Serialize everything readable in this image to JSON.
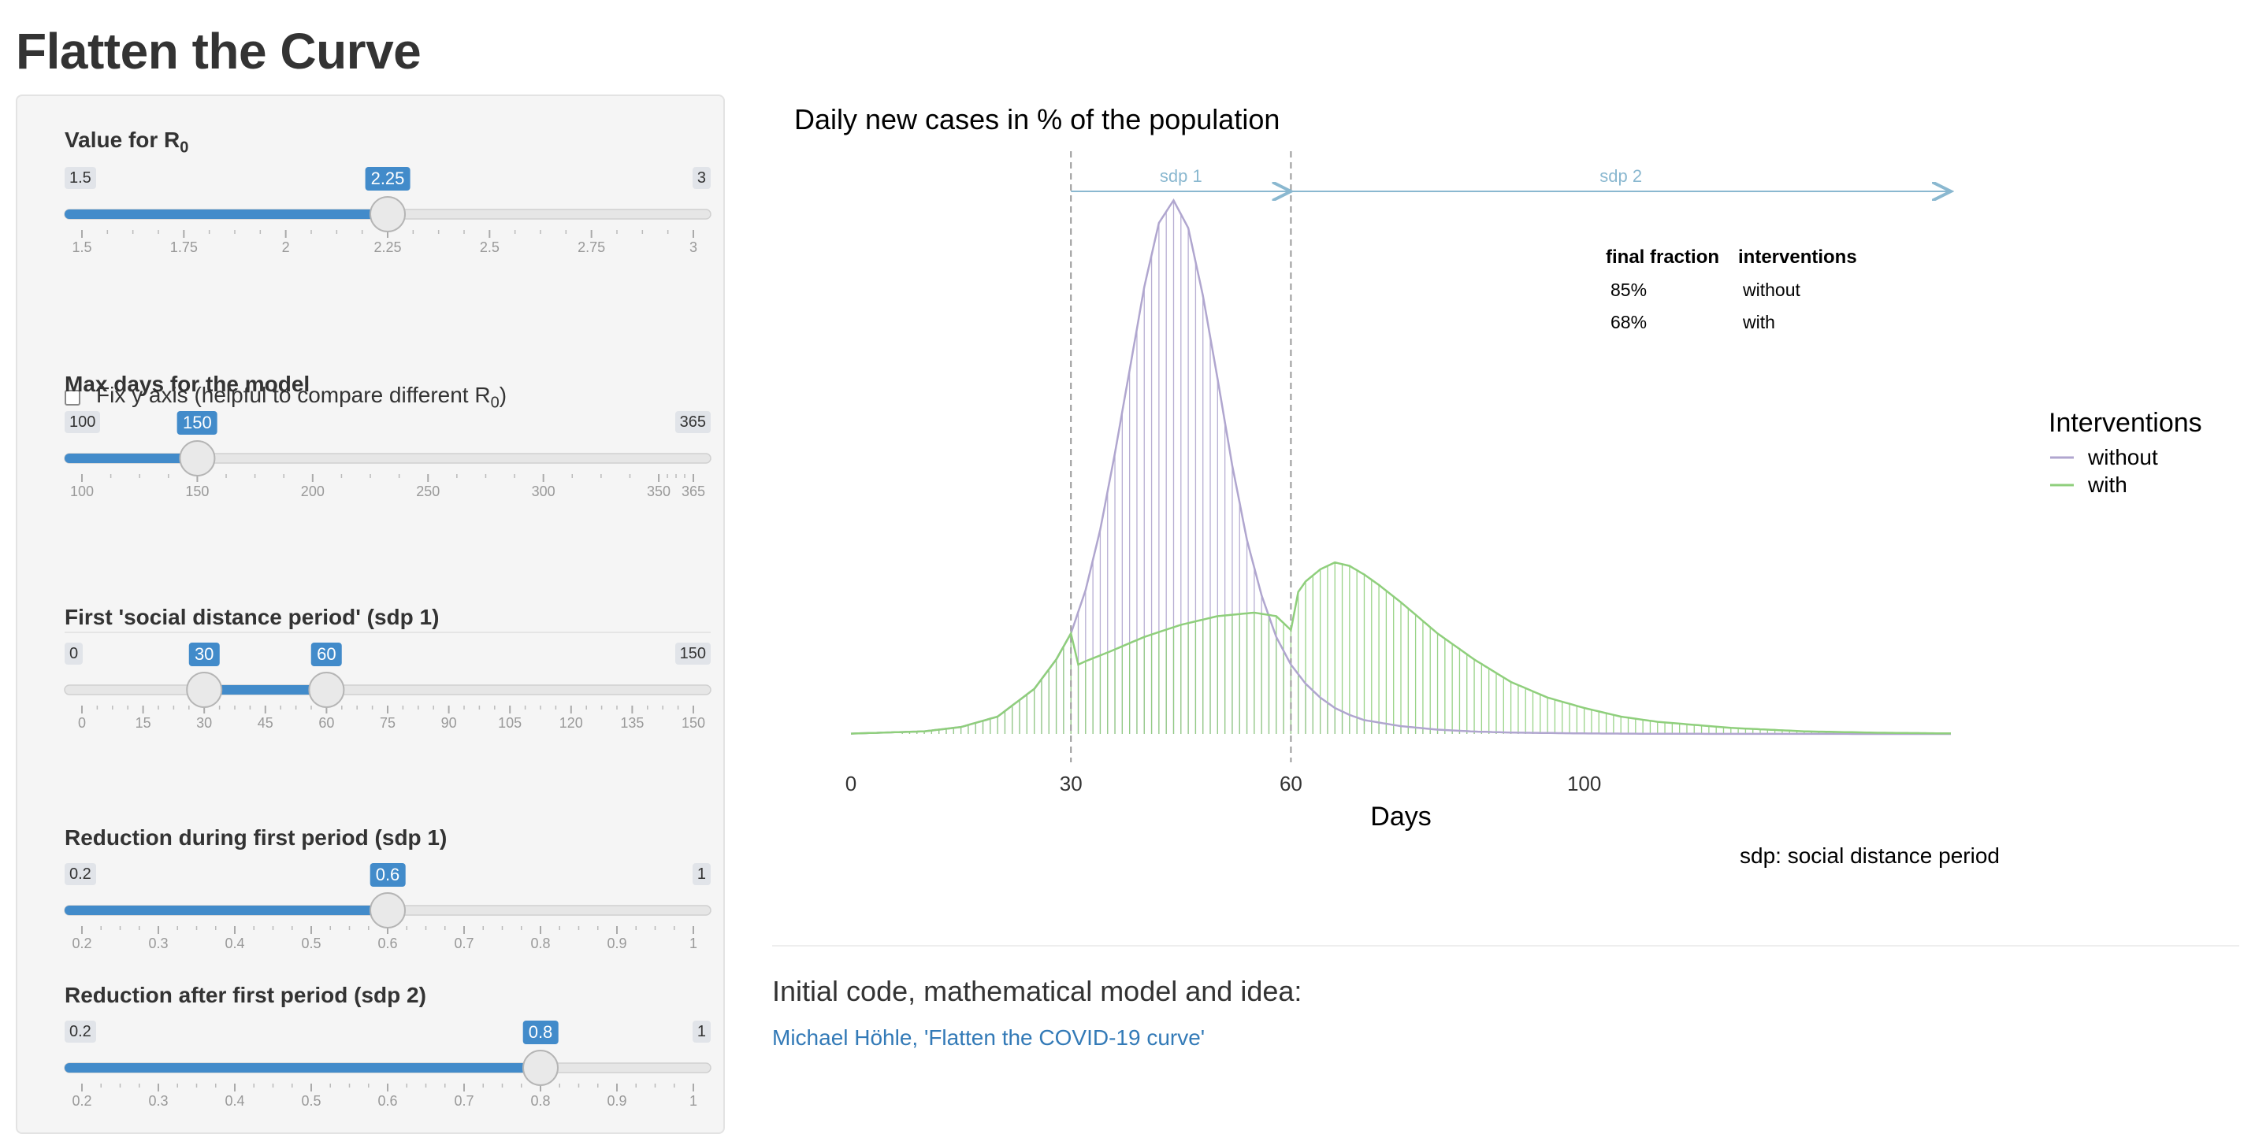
{
  "page": {
    "title": "Flatten the Curve"
  },
  "controls": {
    "r0": {
      "label": "Value for R",
      "label_sub": "0",
      "min": 1.5,
      "max": 3,
      "value": 2.25,
      "min_label": "1.5",
      "max_label": "3",
      "value_label": "2.25",
      "ticks": [
        "1.5",
        "1.75",
        "2",
        "2.25",
        "2.5",
        "2.75",
        "3"
      ]
    },
    "fix_y": {
      "label": "Fix y axis (helpful to compare different R",
      "label_sub": "0",
      "label_end": ")",
      "checked": false
    },
    "max_days": {
      "label": "Max days for the model",
      "min": 100,
      "max": 365,
      "value": 150,
      "min_label": "100",
      "max_label": "365",
      "value_label": "150",
      "ticks": [
        "100",
        "150",
        "200",
        "250",
        "300",
        "350",
        "365"
      ]
    },
    "sdp1": {
      "label": "First 'social distance period' (sdp 1)",
      "min": 0,
      "max": 150,
      "from": 30,
      "to": 60,
      "min_label": "0",
      "max_label": "150",
      "from_label": "30",
      "to_label": "60",
      "ticks": [
        "0",
        "15",
        "30",
        "45",
        "60",
        "75",
        "90",
        "105",
        "120",
        "135",
        "150"
      ]
    },
    "red1": {
      "label": "Reduction during first period (sdp 1)",
      "min": 0.2,
      "max": 1,
      "value": 0.6,
      "min_label": "0.2",
      "max_label": "1",
      "value_label": "0.6",
      "ticks": [
        "0.2",
        "0.3",
        "0.4",
        "0.5",
        "0.6",
        "0.7",
        "0.8",
        "0.9",
        "1"
      ]
    },
    "red2": {
      "label": "Reduction after first period (sdp 2)",
      "min": 0.2,
      "max": 1,
      "value": 0.8,
      "min_label": "0.2",
      "max_label": "1",
      "value_label": "0.8",
      "ticks": [
        "0.2",
        "0.3",
        "0.4",
        "0.5",
        "0.6",
        "0.7",
        "0.8",
        "0.9",
        "1"
      ]
    }
  },
  "chart_data": {
    "type": "line",
    "title": "Daily new cases in % of the population",
    "xlabel": "Days",
    "ylabel": "",
    "xlim": [
      0,
      150
    ],
    "ylim": [
      0,
      3.1
    ],
    "grid": false,
    "x_ticks": [
      0,
      30,
      60,
      100
    ],
    "periods": [
      {
        "label": "sdp 1",
        "from": 30,
        "to": 60
      },
      {
        "label": "sdp 2",
        "from": 60,
        "to": 150
      }
    ],
    "legend": {
      "title": "Interventions",
      "placement": "right",
      "entries": [
        {
          "label": "without",
          "color": "#b0a6cf"
        },
        {
          "label": "with",
          "color": "#8fcf7c"
        }
      ]
    },
    "summary_table": {
      "headers": [
        "final fraction",
        "interventions"
      ],
      "rows": [
        [
          "85%",
          "without"
        ],
        [
          "68%",
          "with"
        ]
      ]
    },
    "note": "sdp: social distance period",
    "series": [
      {
        "name": "without",
        "color": "#b0a6cf",
        "x": [
          0,
          10,
          15,
          20,
          25,
          28,
          30,
          32,
          34,
          36,
          38,
          40,
          42,
          44,
          46,
          48,
          50,
          52,
          54,
          56,
          58,
          60,
          62,
          64,
          66,
          68,
          70,
          75,
          80,
          85,
          90,
          100,
          110,
          120,
          150
        ],
        "y": [
          0.002,
          0.015,
          0.04,
          0.1,
          0.26,
          0.43,
          0.58,
          0.83,
          1.18,
          1.62,
          2.1,
          2.58,
          2.95,
          3.08,
          2.92,
          2.53,
          2.05,
          1.55,
          1.12,
          0.8,
          0.56,
          0.4,
          0.29,
          0.21,
          0.15,
          0.11,
          0.08,
          0.045,
          0.025,
          0.014,
          0.008,
          0.003,
          0.001,
          0.0005,
          0
        ]
      },
      {
        "name": "with",
        "color": "#8fcf7c",
        "x": [
          0,
          10,
          15,
          20,
          25,
          28,
          30,
          31,
          32,
          35,
          40,
          45,
          50,
          55,
          58,
          60,
          61,
          62,
          64,
          66,
          68,
          70,
          72,
          75,
          80,
          85,
          90,
          95,
          100,
          105,
          110,
          120,
          130,
          140,
          150
        ],
        "y": [
          0.002,
          0.015,
          0.04,
          0.1,
          0.26,
          0.43,
          0.58,
          0.4,
          0.42,
          0.47,
          0.56,
          0.63,
          0.68,
          0.7,
          0.68,
          0.6,
          0.82,
          0.88,
          0.95,
          0.99,
          0.97,
          0.92,
          0.86,
          0.76,
          0.58,
          0.43,
          0.3,
          0.21,
          0.15,
          0.1,
          0.07,
          0.035,
          0.015,
          0.007,
          0.003
        ]
      }
    ]
  },
  "credits": {
    "heading": "Initial code, mathematical model and idea:",
    "link_text": "Michael Höhle, 'Flatten the COVID-19 curve'"
  }
}
